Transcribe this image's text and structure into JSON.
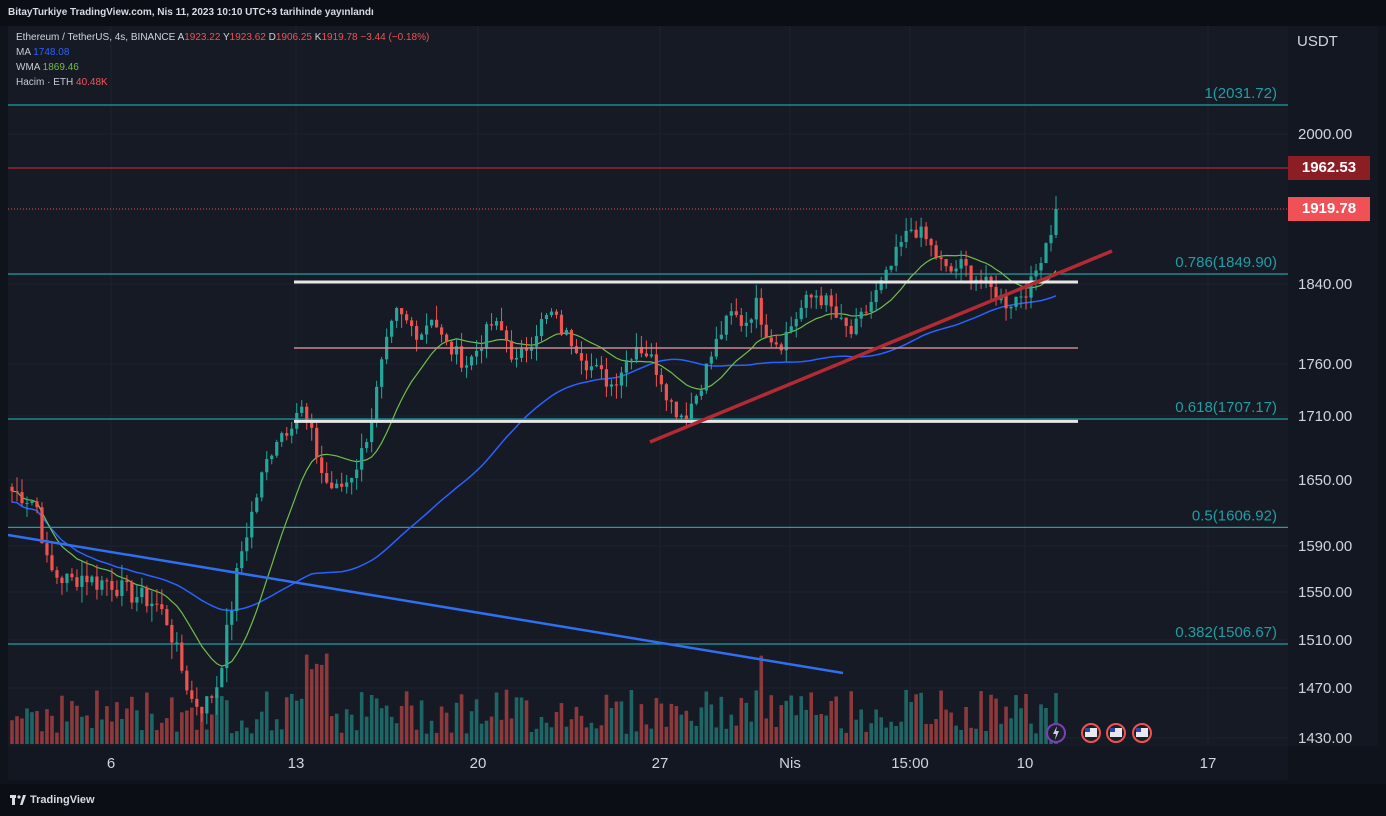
{
  "header": {
    "published": "BitayTurkiye TradingView.com, Nis 11, 2023 10:10 UTC+3 tarihinde yayınlandı"
  },
  "legend": {
    "symbol": "Ethereum / TetherUS, 4s, BINANCE",
    "o_label": "A",
    "o_value": "1923.22",
    "h_label": "Y",
    "h_value": "1923.62",
    "l_label": "D",
    "l_value": "1906.25",
    "c_label": "K",
    "c_value": "1919.78",
    "change": "−3.44 (−0.18%)",
    "ma_label": "MA",
    "ma_value": "1748.08",
    "wma_label": "WMA",
    "wma_value": "1869.46",
    "vol_label": "Hacim · ETH",
    "vol_value": "40.48K"
  },
  "footer": {
    "brand": "TradingView"
  },
  "colors": {
    "up": "#26a69a",
    "down": "#ef5350",
    "ma": "#2962ff",
    "wma": "#6fbf4a",
    "fib": "#1f9ea4",
    "support": "#b22b34",
    "grid": "#1e2230"
  },
  "chart_data": {
    "type": "candlestick",
    "currency": "USDT",
    "y_ticks": [
      2000.0,
      1840.0,
      1760.0,
      1710.0,
      1650.0,
      1590.0,
      1550.0,
      1510.0,
      1470.0,
      1430.0
    ],
    "y_tick_labels": [
      "2000.00",
      "1840.00",
      "1760.00",
      "1710.00",
      "1650.00",
      "1590.00",
      "1550.00",
      "1510.00",
      "1470.00",
      "1430.00"
    ],
    "x_ticks": [
      "6",
      "13",
      "20",
      "27",
      "Nis",
      "15:00",
      "10",
      "17"
    ],
    "fib_levels": [
      {
        "label": "1(2031.72)",
        "value": 2031.72
      },
      {
        "label": "0.786(1849.90)",
        "value": 1849.9
      },
      {
        "label": "0.618(1707.17)",
        "value": 1707.17
      },
      {
        "label": "0.5(1606.92)",
        "value": 1606.92
      },
      {
        "label": "0.382(1506.67)",
        "value": 1506.67
      }
    ],
    "resistance_line": 1962.53,
    "resistance_label": "1962.53",
    "last_price": 1919.78,
    "last_price_label": "1919.78",
    "range_box": {
      "top": 1842,
      "mid": 1776,
      "bottom": 1705
    },
    "candles_close_path": [
      1640,
      1635,
      1630,
      1570,
      1562,
      1560,
      1565,
      1558,
      1560,
      1553,
      1548,
      1545,
      1540,
      1525,
      1490,
      1460,
      1455,
      1470,
      1520,
      1580,
      1620,
      1660,
      1690,
      1700,
      1720,
      1690,
      1650,
      1640,
      1650,
      1670,
      1710,
      1770,
      1810,
      1800,
      1790,
      1810,
      1780,
      1770,
      1760,
      1780,
      1800,
      1790,
      1760,
      1780,
      1800,
      1810,
      1790,
      1780,
      1760,
      1750,
      1740,
      1760,
      1780,
      1770,
      1750,
      1720,
      1710,
      1730,
      1760,
      1790,
      1810,
      1800,
      1820,
      1790,
      1780,
      1800,
      1820,
      1830,
      1820,
      1800,
      1790,
      1810,
      1830,
      1850,
      1880,
      1900,
      1890,
      1870,
      1850,
      1860,
      1850,
      1840,
      1830,
      1820,
      1830,
      1840,
      1880,
      1910
    ]
  }
}
